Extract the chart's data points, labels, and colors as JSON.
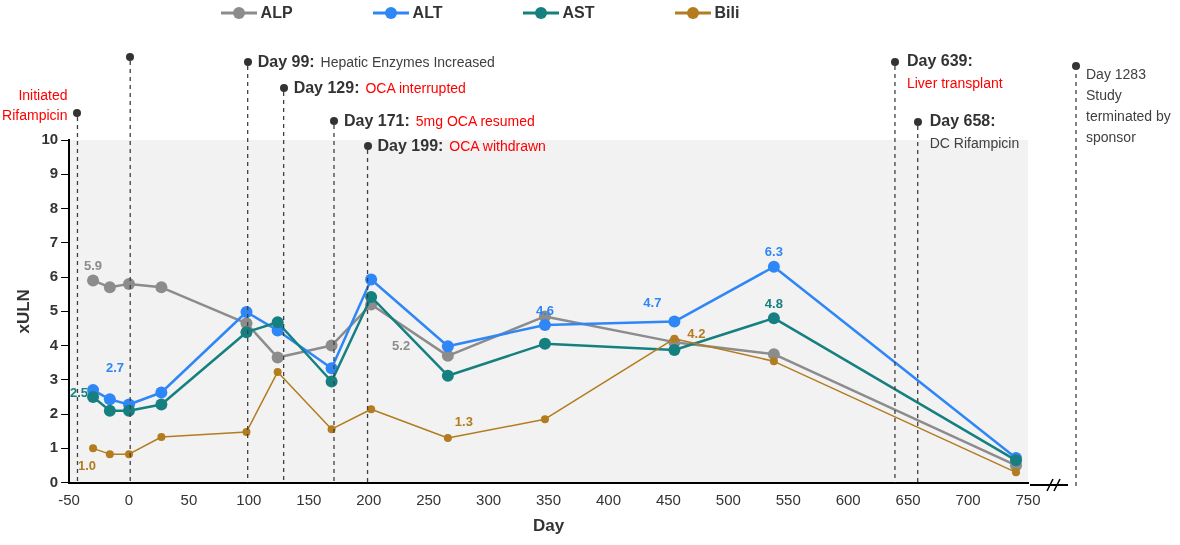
{
  "chart_data": {
    "type": "line",
    "xlabel": "Day",
    "ylabel": "xULN",
    "x": [
      -30,
      -16,
      0,
      27,
      98,
      124,
      169,
      202,
      266,
      347,
      455,
      538,
      740
    ],
    "series": [
      {
        "name": "ALP",
        "color": "#8c8c8c",
        "values": [
          5.9,
          5.7,
          5.8,
          5.7,
          4.65,
          3.65,
          4.0,
          5.2,
          3.7,
          4.85,
          4.1,
          3.75,
          0.5
        ],
        "value_labels": [
          "5.9",
          null,
          null,
          null,
          null,
          null,
          null,
          "5.2",
          null,
          null,
          null,
          null,
          null
        ]
      },
      {
        "name": "ALT",
        "color": "#2f86f6",
        "values": [
          2.7,
          2.43,
          2.28,
          2.63,
          4.98,
          4.44,
          3.34,
          5.93,
          3.98,
          4.6,
          4.7,
          6.3,
          0.72
        ],
        "value_labels": [
          "2.7",
          null,
          null,
          null,
          null,
          null,
          null,
          null,
          null,
          "4.6",
          "4.7",
          "6.3",
          null
        ]
      },
      {
        "name": "AST",
        "color": "#168080",
        "values": [
          2.5,
          2.1,
          2.1,
          2.28,
          4.39,
          4.68,
          2.95,
          5.42,
          3.12,
          4.05,
          3.87,
          4.8,
          0.65
        ],
        "value_labels": [
          "2.5",
          null,
          null,
          null,
          null,
          null,
          null,
          null,
          null,
          null,
          null,
          "4.8",
          null
        ]
      },
      {
        "name": "Bili",
        "color": "#b27c1f",
        "values": [
          1.0,
          0.83,
          0.83,
          1.33,
          1.48,
          3.23,
          1.56,
          2.14,
          1.3,
          1.85,
          4.2,
          3.54,
          0.3
        ],
        "value_labels": [
          "1.0",
          null,
          null,
          null,
          null,
          null,
          null,
          null,
          "1.3",
          null,
          "4.2",
          null,
          null
        ]
      }
    ],
    "xlim": [
      -50,
      750
    ],
    "xticks": [
      -50,
      0,
      50,
      100,
      150,
      200,
      250,
      300,
      350,
      400,
      450,
      500,
      550,
      600,
      650,
      700,
      750
    ],
    "ylim": [
      0,
      10
    ],
    "yticks": [
      0,
      1,
      2,
      3,
      4,
      5,
      6,
      7,
      8,
      9,
      10
    ],
    "ref_lines": [
      {
        "axis": "x",
        "value": -43,
        "label": "Initiated Rifampicin"
      },
      {
        "axis": "x",
        "value": 1
      },
      {
        "axis": "x",
        "value": 99,
        "label": "Day 99: Hepatic Enzymes Increased"
      },
      {
        "axis": "x",
        "value": 129,
        "label": "Day 129: OCA interrupted"
      },
      {
        "axis": "x",
        "value": 171,
        "label": "Day 171: 5mg OCA resumed"
      },
      {
        "axis": "x",
        "value": 199,
        "label": "Day 199: OCA withdrawn"
      },
      {
        "axis": "x",
        "value": 639,
        "label": "Day 639: Liver transplant"
      },
      {
        "axis": "x",
        "value": 658,
        "label": "Day 658: DC Rifampicin"
      }
    ],
    "annotations": [
      "Day 1283 Study terminated by sponsor"
    ],
    "legend": "top",
    "marker": "circle",
    "line_style": "solid",
    "grid": false
  }
}
